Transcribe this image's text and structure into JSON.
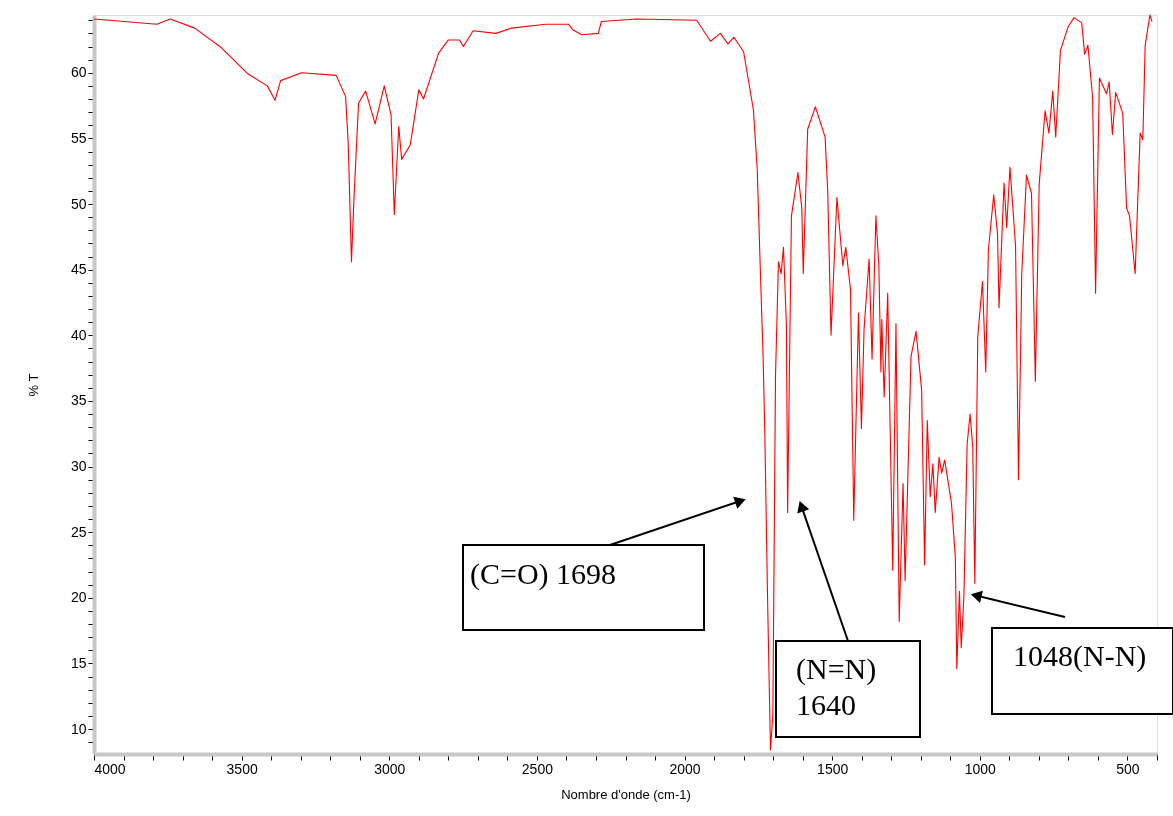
{
  "chart_data": {
    "type": "line",
    "xlabel": "Nombre d'onde (cm-1)",
    "ylabel": "% T",
    "xlim": [
      4000,
      400
    ],
    "ylim": [
      8.1,
      64.4
    ],
    "xticks": [
      4000,
      {
        "value": 3900,
        "label": null
      },
      {
        "value": 3800,
        "label": null
      },
      {
        "value": 3700,
        "label": null
      },
      {
        "value": 3600,
        "label": null
      },
      3500,
      {
        "value": 3400,
        "label": null
      },
      {
        "value": 3300,
        "label": null
      },
      {
        "value": 3200,
        "label": null
      },
      {
        "value": 3100,
        "label": null
      },
      3000,
      {
        "value": 2900,
        "label": null
      },
      {
        "value": 2800,
        "label": null
      },
      {
        "value": 2700,
        "label": null
      },
      {
        "value": 2600,
        "label": null
      },
      2500,
      {
        "value": 2400,
        "label": null
      },
      {
        "value": 2300,
        "label": null
      },
      {
        "value": 2200,
        "label": null
      },
      {
        "value": 2100,
        "label": null
      },
      2000,
      {
        "value": 1900,
        "label": null
      },
      {
        "value": 1800,
        "label": null
      },
      {
        "value": 1700,
        "label": null
      },
      {
        "value": 1600,
        "label": null
      },
      1500,
      {
        "value": 1400,
        "label": null
      },
      {
        "value": 1300,
        "label": null
      },
      {
        "value": 1200,
        "label": null
      },
      {
        "value": 1100,
        "label": null
      },
      1000,
      {
        "value": 900,
        "label": null
      },
      {
        "value": 800,
        "label": null
      },
      {
        "value": 700,
        "label": null
      },
      {
        "value": 600,
        "label": null
      },
      500,
      {
        "value": 400,
        "label": null
      }
    ],
    "yticks": [
      {
        "value": 9,
        "label": null
      },
      10,
      {
        "value": 11,
        "label": null
      },
      {
        "value": 12,
        "label": null
      },
      {
        "value": 13,
        "label": null
      },
      {
        "value": 14,
        "label": null
      },
      15,
      {
        "value": 16,
        "label": null
      },
      {
        "value": 17,
        "label": null
      },
      {
        "value": 18,
        "label": null
      },
      {
        "value": 19,
        "label": null
      },
      20,
      {
        "value": 21,
        "label": null
      },
      {
        "value": 22,
        "label": null
      },
      {
        "value": 23,
        "label": null
      },
      {
        "value": 24,
        "label": null
      },
      25,
      {
        "value": 26,
        "label": null
      },
      {
        "value": 27,
        "label": null
      },
      {
        "value": 28,
        "label": null
      },
      {
        "value": 29,
        "label": null
      },
      30,
      {
        "value": 31,
        "label": null
      },
      {
        "value": 32,
        "label": null
      },
      {
        "value": 33,
        "label": null
      },
      {
        "value": 34,
        "label": null
      },
      35,
      {
        "value": 36,
        "label": null
      },
      {
        "value": 37,
        "label": null
      },
      {
        "value": 38,
        "label": null
      },
      {
        "value": 39,
        "label": null
      },
      40,
      {
        "value": 41,
        "label": null
      },
      {
        "value": 42,
        "label": null
      },
      {
        "value": 43,
        "label": null
      },
      {
        "value": 44,
        "label": null
      },
      45,
      {
        "value": 46,
        "label": null
      },
      {
        "value": 47,
        "label": null
      },
      {
        "value": 48,
        "label": null
      },
      {
        "value": 49,
        "label": null
      },
      50,
      {
        "value": 51,
        "label": null
      },
      {
        "value": 52,
        "label": null
      },
      {
        "value": 53,
        "label": null
      },
      {
        "value": 54,
        "label": null
      },
      55,
      {
        "value": 56,
        "label": null
      },
      {
        "value": 57,
        "label": null
      },
      {
        "value": 58,
        "label": null
      },
      {
        "value": 59,
        "label": null
      },
      60,
      {
        "value": 61,
        "label": null
      },
      {
        "value": 62,
        "label": null
      },
      {
        "value": 63,
        "label": null
      },
      {
        "value": 64,
        "label": null
      }
    ],
    "grid": false,
    "line_style": "solid",
    "series": [
      {
        "color": "#ff0000",
        "x": [
          4000,
          3787,
          3742,
          3659,
          3568,
          3478,
          3413,
          3387,
          3368,
          3297,
          3180,
          3148,
          3139,
          3128,
          3120,
          3104,
          3080,
          3048,
          3017,
          2994,
          2983,
          2968,
          2958,
          2929,
          2900,
          2884,
          2833,
          2800,
          2762,
          2749,
          2716,
          2639,
          2587,
          2470,
          2393,
          2380,
          2348,
          2292,
          2282,
          2163,
          1959,
          1912,
          1879,
          1853,
          1833,
          1800,
          1767,
          1754,
          1743,
          1734,
          1728,
          1719,
          1709,
          1701,
          1698,
          1692,
          1682,
          1673,
          1665,
          1655,
          1651,
          1638,
          1616,
          1603,
          1598,
          1583,
          1557,
          1524,
          1515,
          1504,
          1484,
          1464,
          1454,
          1438,
          1427,
          1411,
          1401,
          1392,
          1375,
          1365,
          1352,
          1342,
          1335,
          1332,
          1324,
          1312,
          1295,
          1284,
          1273,
          1260,
          1253,
          1233,
          1216,
          1197,
          1187,
          1178,
          1168,
          1159,
          1151,
          1138,
          1129,
          1119,
          1096,
          1083,
          1078,
          1069,
          1063,
          1054,
          1043,
          1033,
          1024,
          1017,
          1007,
          991,
          980,
          971,
          953,
          940,
          935,
          918,
          909,
          898,
          879,
          869,
          858,
          842,
          825,
          812,
          799,
          779,
          766,
          753,
          743,
          727,
          701,
          681,
          655,
          645,
          634,
          618,
          608,
          595,
          571,
          562,
          551,
          540,
          516,
          503,
          493,
          474,
          457,
          448,
          440,
          424,
          417
        ],
        "values": [
          64.1,
          63.7,
          64.1,
          63.4,
          61.9,
          59.9,
          59.0,
          57.9,
          59.4,
          60.0,
          59.8,
          58.2,
          54.6,
          45.6,
          50.2,
          57.7,
          58.6,
          56.1,
          59.0,
          56.8,
          49.2,
          55.9,
          53.4,
          54.5,
          58.7,
          58.0,
          61.5,
          62.5,
          62.5,
          62.0,
          63.2,
          63.0,
          63.4,
          63.7,
          63.7,
          63.3,
          62.9,
          63.0,
          63.9,
          64.1,
          64.0,
          62.4,
          63.0,
          62.2,
          62.7,
          61.6,
          57.2,
          52.7,
          44.7,
          38.4,
          32.3,
          20.1,
          8.4,
          11.1,
          19.4,
          36.9,
          45.6,
          44.7,
          46.7,
          40.8,
          26.5,
          49.1,
          52.4,
          49.7,
          44.7,
          55.7,
          57.4,
          55.1,
          50.9,
          40.0,
          50.5,
          45.3,
          46.7,
          43.5,
          25.9,
          41.7,
          32.9,
          40.5,
          45.8,
          38.2,
          49.1,
          45.3,
          37.2,
          41.2,
          35.3,
          43.2,
          22.1,
          40.9,
          18.2,
          28.7,
          21.3,
          38.4,
          40.3,
          35.8,
          22.5,
          33.5,
          27.7,
          30.2,
          26.5,
          30.7,
          29.5,
          30.5,
          27.2,
          23.1,
          14.6,
          20.5,
          16.2,
          20.1,
          31.7,
          34.0,
          31.5,
          21.1,
          39.9,
          44.1,
          37.2,
          46.5,
          50.7,
          47.7,
          42.1,
          51.6,
          48.2,
          52.8,
          46.8,
          29.0,
          44.7,
          52.2,
          50.8,
          36.5,
          51.5,
          57.1,
          55.4,
          58.6,
          55.1,
          61.7,
          63.5,
          64.2,
          63.8,
          61.4,
          62.1,
          58.1,
          43.2,
          59.6,
          58.4,
          59.3,
          55.3,
          58.5,
          56.9,
          49.7,
          49.1,
          44.7,
          55.4,
          54.9,
          62.1,
          64.4,
          63.9
        ]
      }
    ],
    "annotations": [
      "(C=O)    1698",
      "(N=N)\n1640",
      "1048(N-N)"
    ]
  }
}
